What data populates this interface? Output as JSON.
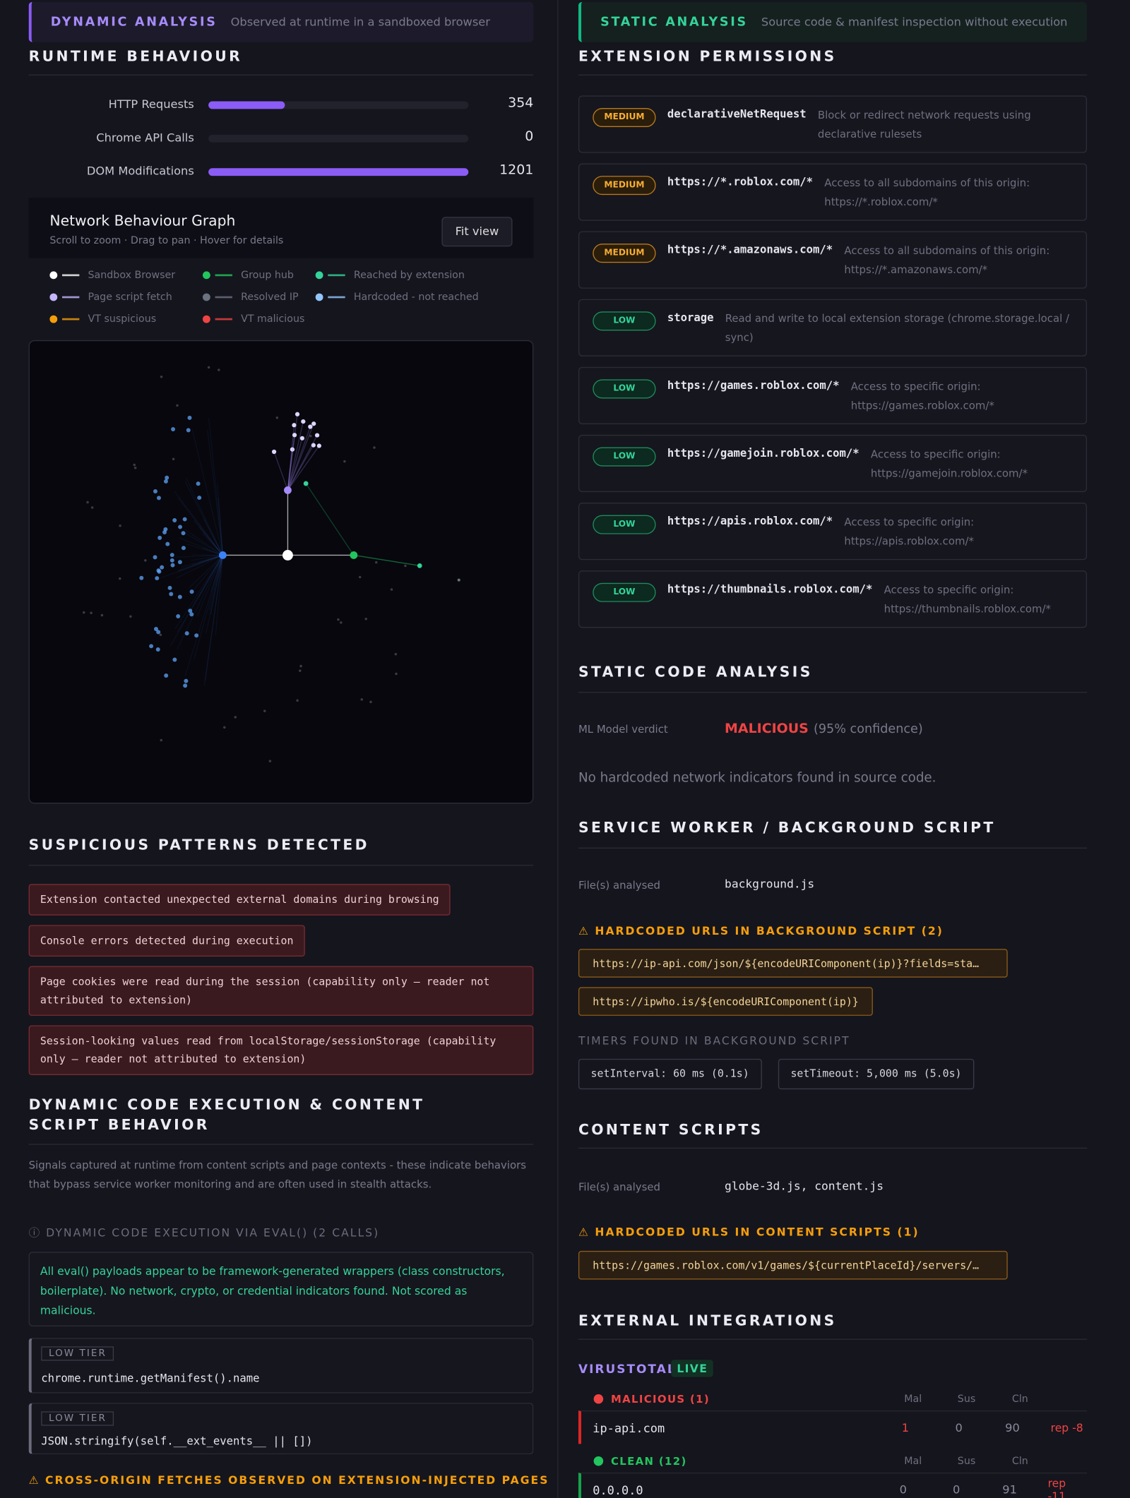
{
  "dynamic": {
    "tag": "DYNAMIC ANALYSIS",
    "tag_desc": "Observed at runtime in a sandboxed browser",
    "runtime": {
      "title": "RUNTIME BEHAVIOUR",
      "metrics": [
        {
          "label": "HTTP Requests",
          "value": 354
        },
        {
          "label": "Chrome API Calls",
          "value": 0
        },
        {
          "label": "DOM Modifications",
          "value": 1201
        }
      ]
    },
    "graph": {
      "title": "Network Behaviour Graph",
      "hint": "Scroll to zoom · Drag to pan · Hover for details",
      "button": "Fit view",
      "legend": [
        {
          "label": "Sandbox Browser",
          "color": "#ffffff"
        },
        {
          "label": "Group hub",
          "color": "#22c55e"
        },
        {
          "label": "Reached by extension",
          "color": "#34d399"
        },
        {
          "label": "Page script fetch",
          "color": "#c4b5fd"
        },
        {
          "label": "Resolved IP",
          "color": "#6b7280"
        },
        {
          "label": "Hardcoded - not reached",
          "color": "#93c5fd"
        },
        {
          "label": "VT suspicious",
          "color": "#f59e0b"
        },
        {
          "label": "VT malicious",
          "color": "#ef4444"
        }
      ]
    },
    "patterns": {
      "title": "SUSPICIOUS PATTERNS DETECTED",
      "items": [
        "Extension contacted unexpected external domains during browsing",
        "Console errors detected during execution",
        "Page cookies were read during the session (capability only — reader not attributed to extension)",
        "Session-looking values read from localStorage/sessionStorage (capability only — reader not attributed to extension)"
      ]
    },
    "dce": {
      "title": "DYNAMIC CODE EXECUTION & CONTENT SCRIPT BEHAVIOR",
      "desc": "Signals captured at runtime from content scripts and page contexts - these indicate behaviors that bypass service worker monitoring and are often used in stealth attacks.",
      "eval_title": "ⓘ DYNAMIC CODE EXECUTION VIA EVAL() (2 CALLS)",
      "note": "All eval() payloads appear to be framework-generated wrappers (class constructors, boilerplate). No network, crypto, or credential indicators found. Not scored as malicious.",
      "calls": [
        {
          "tier": "LOW TIER",
          "code": "chrome.runtime.getManifest().name"
        },
        {
          "tier": "LOW TIER",
          "code": "JSON.stringify(self.__ext_events__ || [])"
        }
      ],
      "cross": "⚠ CROSS-ORIGIN FETCHES OBSERVED ON EXTENSION-INJECTED PAGES"
    }
  },
  "static": {
    "tag": "STATIC ANALYSIS",
    "tag_desc": "Source code & manifest inspection without execution",
    "permissions": {
      "title": "EXTENSION PERMISSIONS",
      "items": [
        {
          "level": "MEDIUM",
          "name": "declarativeNetRequest",
          "desc": "Block or redirect network requests using declarative rulesets"
        },
        {
          "level": "MEDIUM",
          "name": "https://*.roblox.com/*",
          "desc": "Access to all subdomains of this origin: https://*.roblox.com/*"
        },
        {
          "level": "MEDIUM",
          "name": "https://*.amazonaws.com/*",
          "desc": "Access to all subdomains of this origin: https://*.amazonaws.com/*"
        },
        {
          "level": "LOW",
          "name": "storage",
          "desc": "Read and write to local extension storage (chrome.storage.local / sync)"
        },
        {
          "level": "LOW",
          "name": "https://games.roblox.com/*",
          "desc": "Access to specific origin: https://games.roblox.com/*"
        },
        {
          "level": "LOW",
          "name": "https://gamejoin.roblox.com/*",
          "desc": "Access to specific origin: https://gamejoin.roblox.com/*"
        },
        {
          "level": "LOW",
          "name": "https://apis.roblox.com/*",
          "desc": "Access to specific origin: https://apis.roblox.com/*"
        },
        {
          "level": "LOW",
          "name": "https://thumbnails.roblox.com/*",
          "desc": "Access to specific origin: https://thumbnails.roblox.com/*"
        }
      ]
    },
    "code": {
      "title": "STATIC CODE ANALYSIS",
      "ml_label": "ML Model verdict",
      "verdict": "MALICIOUS",
      "confidence": "(95% confidence)",
      "none": "No hardcoded network indicators found in source code."
    },
    "worker": {
      "title": "SERVICE WORKER / BACKGROUND SCRIPT",
      "files_label": "File(s) analysed",
      "files": "background.js",
      "urls_title": "⚠ HARDCODED URLS IN BACKGROUND SCRIPT (2)",
      "urls": [
        "https://ip-api.com/json/${encodeURIComponent(ip)}?fields=sta…",
        "https://ipwho.is/${encodeURIComponent(ip)}"
      ],
      "timers_title": "TIMERS FOUND IN BACKGROUND SCRIPT",
      "timers": [
        "setInterval: 60 ms (0.1s)",
        "setTimeout: 5,000 ms (5.0s)"
      ]
    },
    "content": {
      "title": "CONTENT SCRIPTS",
      "files_label": "File(s) analysed",
      "files": "globe-3d.js, content.js",
      "urls_title": "⚠ HARDCODED URLS IN CONTENT SCRIPTS (1)",
      "urls": [
        "https://games.roblox.com/v1/games/${currentPlaceId}/servers/…"
      ]
    },
    "external": {
      "title": "EXTERNAL INTEGRATIONS",
      "vt": "VIRUSTOTAL",
      "live": "LIVE",
      "columns": [
        "Mal",
        "Sus",
        "Cln"
      ],
      "groups": [
        {
          "title": "MALICIOUS (1)",
          "rows": [
            {
              "domain": "ip-api.com",
              "mal": 1,
              "sus": 0,
              "cln": 90,
              "rep": "rep -8"
            }
          ]
        },
        {
          "title": "CLEAN (12)",
          "rows": [
            {
              "domain": "0.0.0.0",
              "mal": 0,
              "sus": 0,
              "cln": 91,
              "rep": "rep -11"
            }
          ]
        }
      ]
    }
  }
}
